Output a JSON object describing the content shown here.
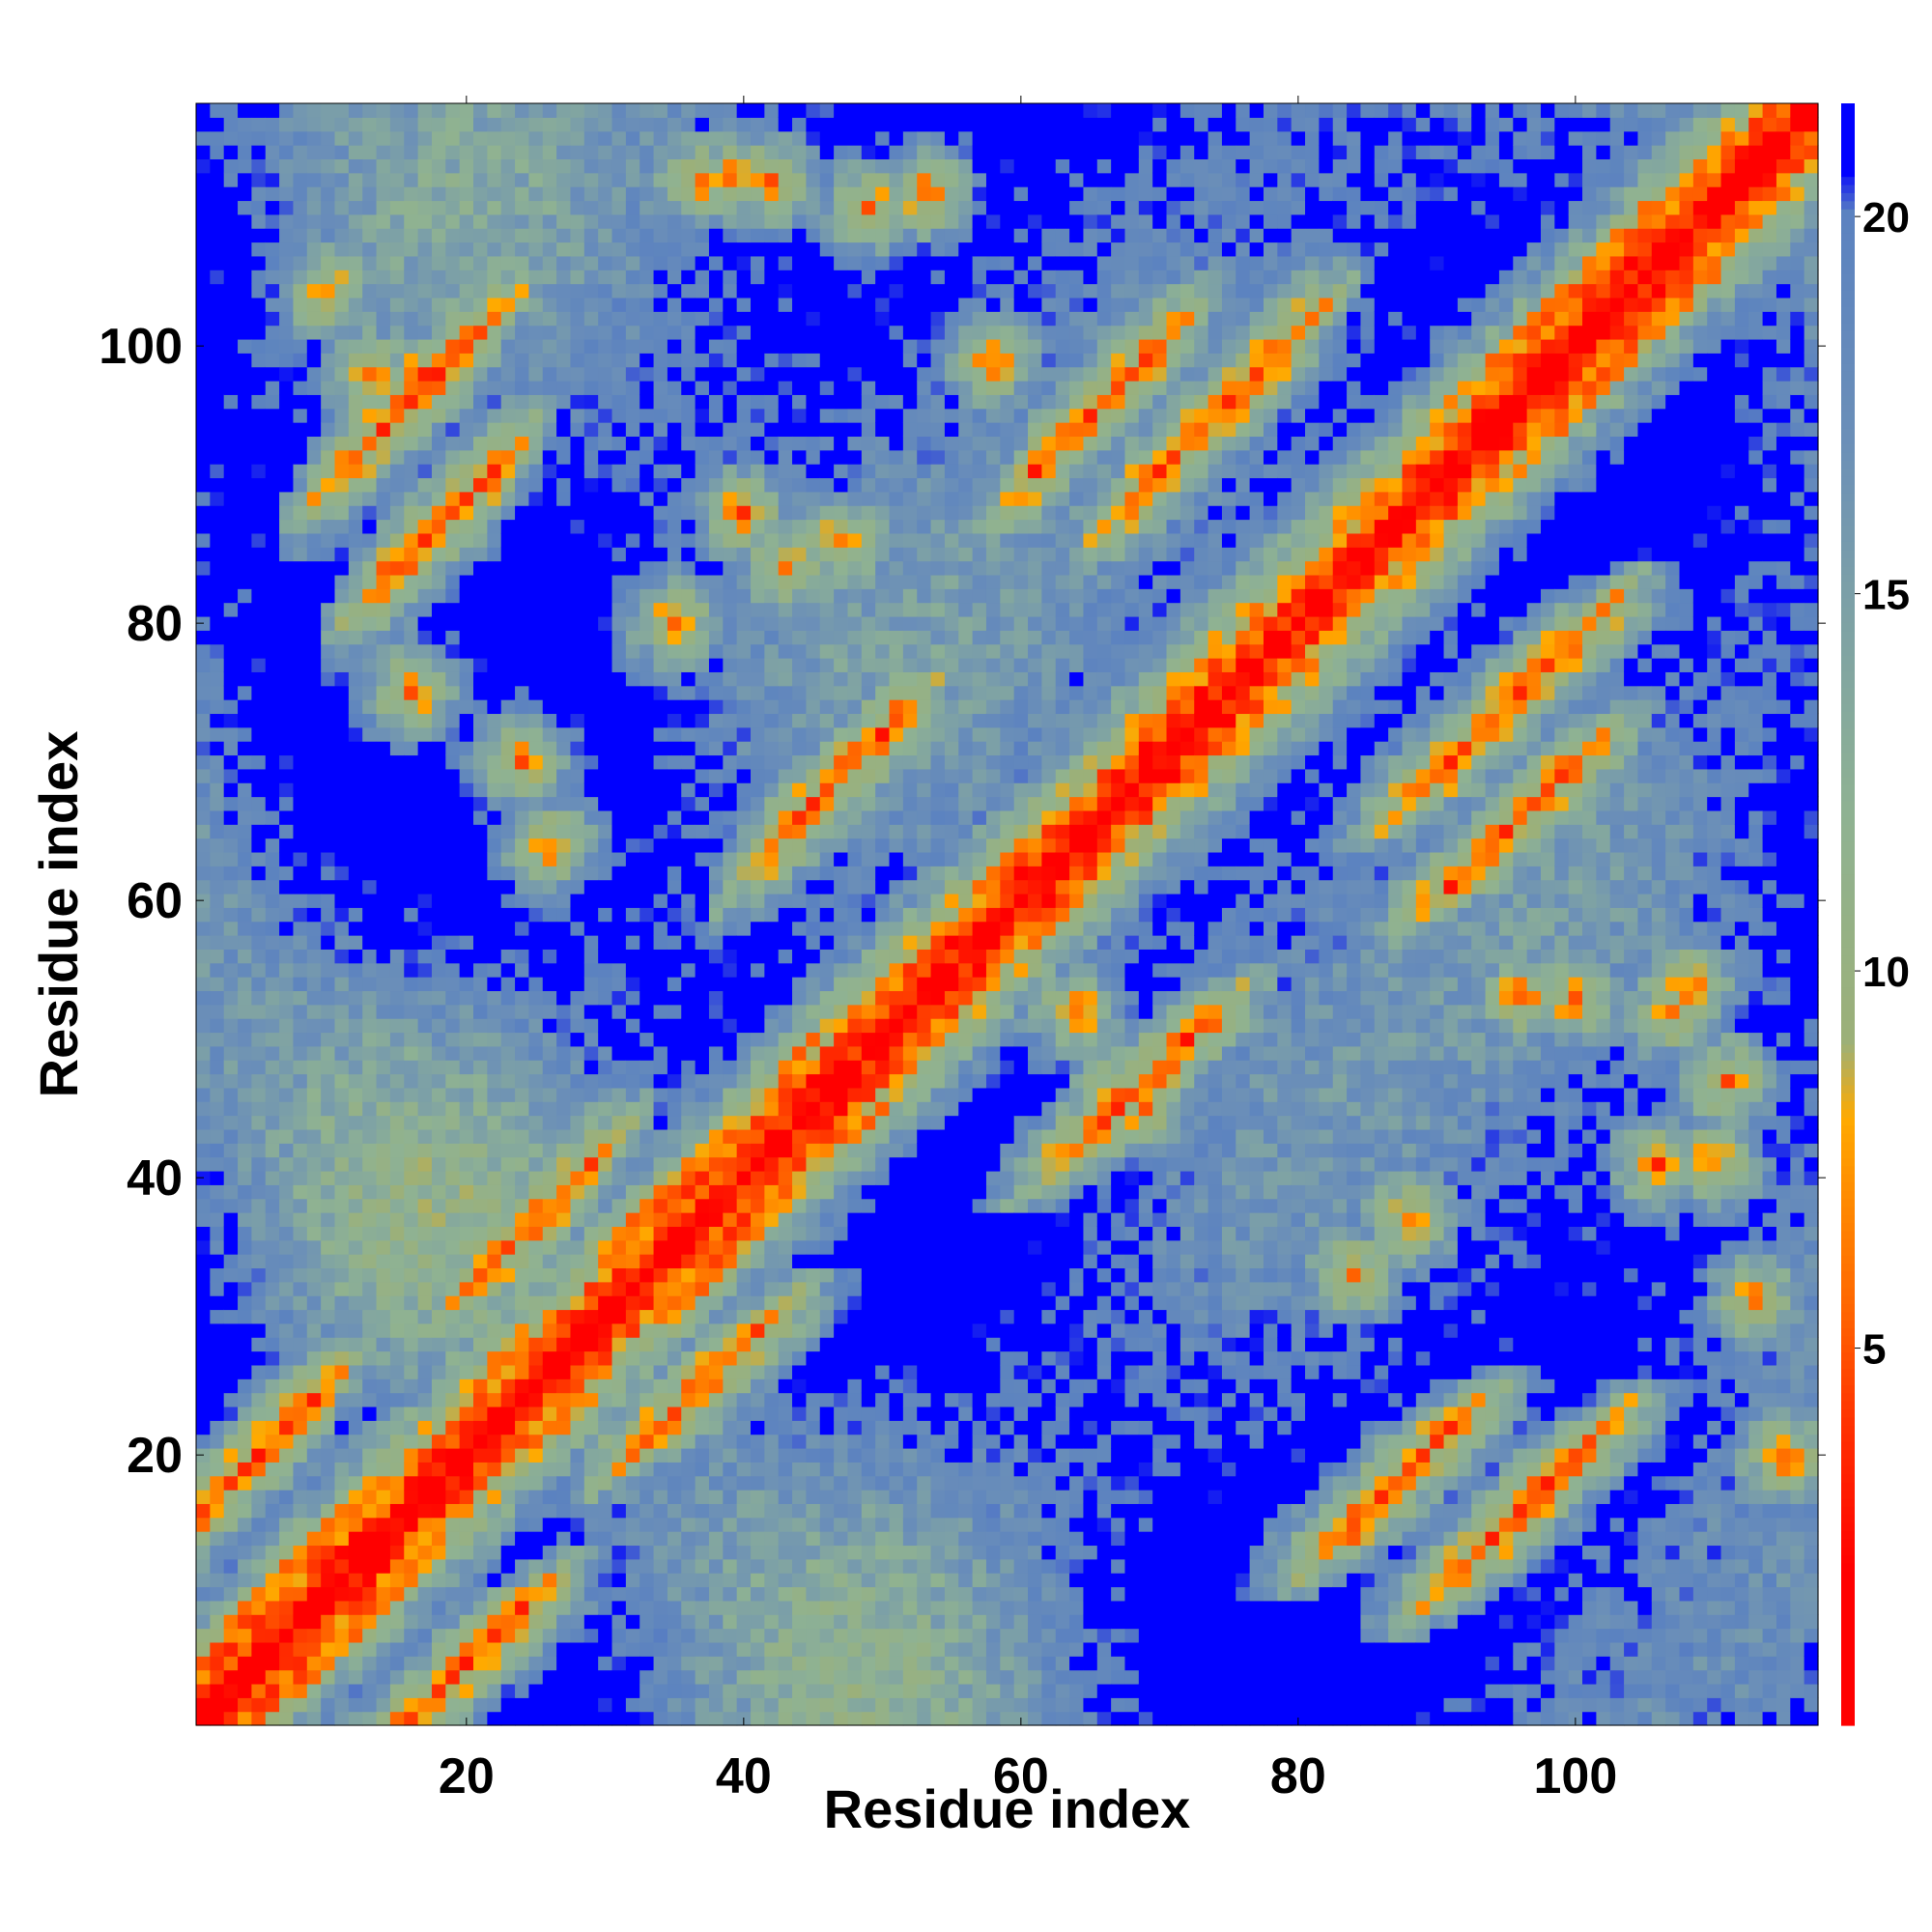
{
  "chart_data": {
    "type": "heatmap",
    "title": "",
    "xlabel": "Residue index",
    "ylabel": "Residue index",
    "n_residues": 117,
    "xlim": [
      1,
      117
    ],
    "ylim": [
      1,
      117
    ],
    "x_ticks": [
      20,
      40,
      60,
      80,
      100
    ],
    "y_ticks": [
      20,
      40,
      60,
      80,
      100
    ],
    "colorbar": {
      "ticks": [
        5,
        10,
        15,
        20
      ],
      "range": [
        0,
        21.5
      ],
      "stops": [
        {
          "value": 0,
          "color": "#ff0000"
        },
        {
          "value": 2,
          "color": "#ff0000"
        },
        {
          "value": 4,
          "color": "#ff3300"
        },
        {
          "value": 5.5,
          "color": "#ff6600"
        },
        {
          "value": 7,
          "color": "#ff8c00"
        },
        {
          "value": 8,
          "color": "#ffaa00"
        },
        {
          "value": 9,
          "color": "#9cb078"
        },
        {
          "value": 12,
          "color": "#8fb292"
        },
        {
          "value": 15,
          "color": "#7b9fa8"
        },
        {
          "value": 17,
          "color": "#6b8fb8"
        },
        {
          "value": 20,
          "color": "#5b82c0"
        },
        {
          "value": 20.6,
          "color": "#0000ff"
        },
        {
          "value": 21.5,
          "color": "#0000ff"
        }
      ],
      "out_of_range_color": "#0000ff"
    },
    "value_description": "Pairwise residue distance map; values above 20 shown as blue background",
    "contact_features": {
      "helices": [
        [
          1,
          16
        ],
        [
          21,
          27
        ],
        [
          31,
          48
        ],
        [
          91,
          108
        ]
      ],
      "antiparallel_pairs": [
        {
          "i_start": 1,
          "j_start": 16,
          "length": 8
        },
        {
          "i_start": 11,
          "j_start": 91,
          "length": 10
        },
        {
          "i_start": 21,
          "j_start": 33,
          "length": 8
        },
        {
          "i_start": 42,
          "j_start": 64,
          "length": 9
        },
        {
          "i_start": 61,
          "j_start": 91,
          "length": 9
        },
        {
          "i_start": 68,
          "j_start": 89,
          "length": 12
        },
        {
          "i_start": 14,
          "j_start": 83,
          "length": 8
        }
      ],
      "spots": [
        [
          37,
          112
        ],
        [
          39,
          112
        ],
        [
          42,
          112
        ],
        [
          49,
          110
        ],
        [
          53,
          111
        ],
        [
          58,
          99
        ],
        [
          64,
          52
        ],
        [
          67,
          46
        ],
        [
          69,
          45
        ],
        [
          84,
          33
        ],
        [
          88,
          37
        ],
        [
          106,
          41
        ],
        [
          110,
          41
        ],
        [
          113,
          31
        ],
        [
          115,
          20
        ],
        [
          108,
          54
        ],
        [
          107,
          52
        ],
        [
          111,
          47
        ],
        [
          96,
          53
        ],
        [
          100,
          53
        ],
        [
          43,
          84
        ],
        [
          47,
          86
        ],
        [
          40,
          88
        ],
        [
          35,
          80
        ],
        [
          24,
          70
        ],
        [
          26,
          64
        ],
        [
          16,
          75
        ],
        [
          17,
          98
        ],
        [
          13,
          98
        ],
        [
          10,
          104
        ]
      ]
    }
  }
}
